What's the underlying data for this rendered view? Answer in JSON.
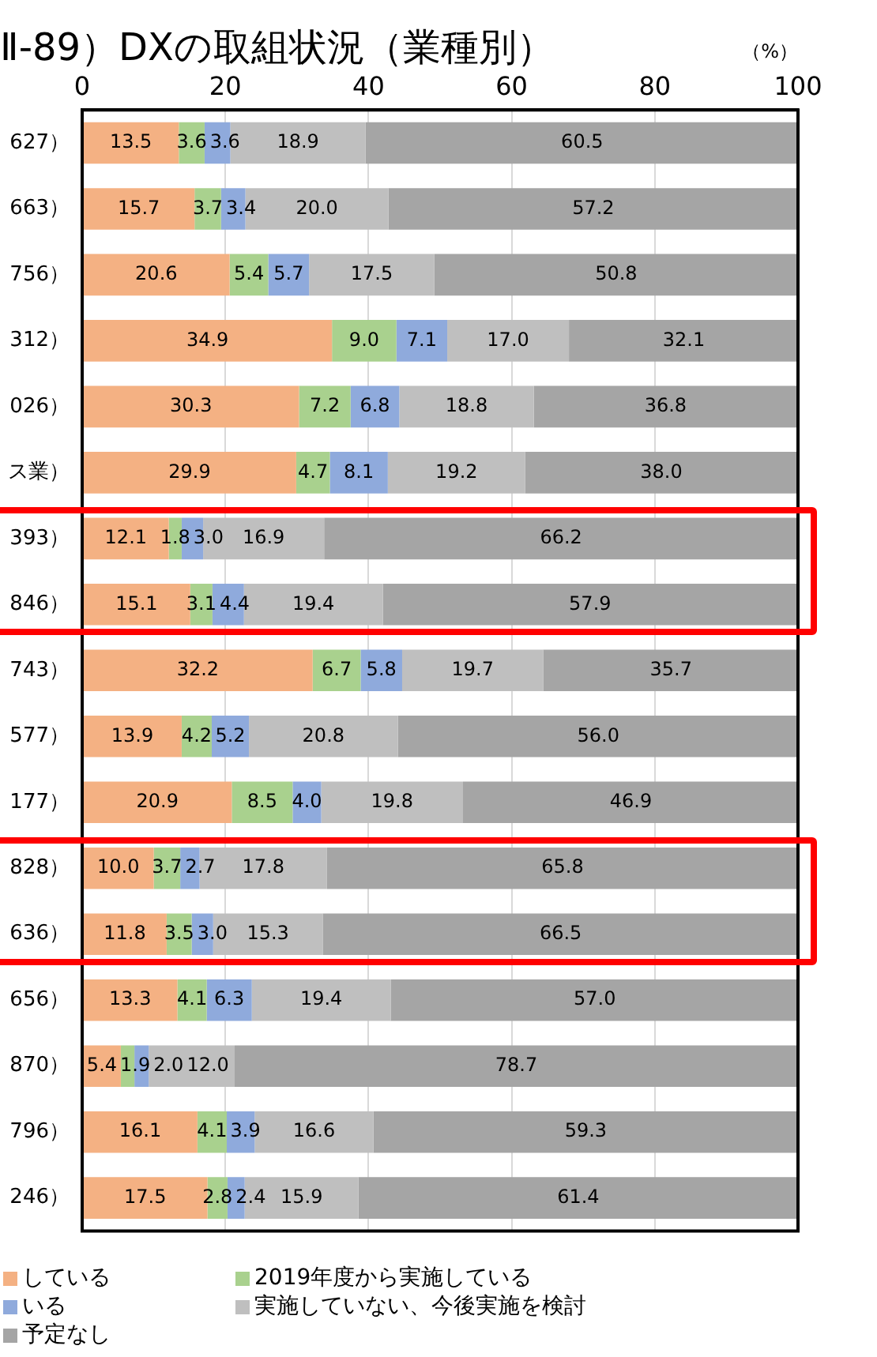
{
  "chart_data": {
    "type": "bar",
    "orientation": "horizontal",
    "stacked": true,
    "title": "Ⅱ-89）DXの取組状況（業種別）",
    "xlabel": "（%）",
    "categories": [
      "627）",
      "663）",
      "756）",
      "312）",
      "026）",
      "ス業）",
      "393）",
      "846）",
      "743）",
      "577）",
      "177）",
      "828）",
      "636）",
      "656）",
      "870）",
      "796）",
      "246）"
    ],
    "series": [
      {
        "name": "している",
        "color": "#f4b183",
        "values": [
          13.5,
          15.7,
          20.6,
          34.9,
          30.3,
          29.9,
          12.1,
          15.1,
          32.2,
          13.9,
          20.9,
          10.0,
          11.8,
          13.3,
          5.4,
          16.1,
          17.5
        ],
        "value_labels": [
          "13.5",
          "15.7",
          "20.6",
          "34.9",
          "30.3",
          "29.9",
          "12.1",
          "15.1",
          "32.2",
          "13.9",
          "20.9",
          "10.0",
          "11.8",
          "13.3",
          "5.4",
          "16.1",
          "17.5"
        ]
      },
      {
        "name": "2019年度から実施している",
        "color": "#a9d18e",
        "values": [
          3.6,
          3.7,
          5.4,
          9.0,
          7.2,
          4.7,
          1.8,
          3.1,
          6.7,
          4.2,
          8.5,
          3.7,
          3.5,
          4.1,
          1.9,
          4.1,
          2.8
        ],
        "value_labels": [
          "3.6",
          "3.7",
          "5.4",
          "9.0",
          "7.2",
          "4.7",
          "1.8",
          "3.1",
          "6.7",
          "4.2",
          "8.5",
          "3.7",
          "3.5",
          "4.1",
          "1.9",
          "4.1",
          "2.8"
        ]
      },
      {
        "name": "いる",
        "color": "#8faadc",
        "values": [
          3.6,
          3.4,
          5.7,
          7.1,
          6.8,
          8.1,
          3.0,
          4.4,
          5.8,
          5.2,
          4.0,
          2.7,
          3.0,
          6.3,
          2.0,
          3.9,
          2.4
        ],
        "value_labels": [
          "3.6",
          "3.4",
          "5.7",
          "7.1",
          "6.8",
          "8.1",
          "3.0",
          "4.4",
          "5.8",
          "5.2",
          "4.0",
          "2.7",
          "3.0",
          "6.3",
          "2.0",
          "3.9",
          "2.4"
        ]
      },
      {
        "name": "実施していない、今後実施を検討",
        "color": "#bfbfbf",
        "values": [
          18.9,
          20.0,
          17.5,
          17.0,
          18.8,
          19.2,
          16.9,
          19.4,
          19.7,
          20.8,
          19.8,
          17.8,
          15.3,
          19.4,
          12.0,
          16.6,
          15.9
        ],
        "value_labels": [
          "18.9",
          "20.0",
          "17.5",
          "17.0",
          "18.8",
          "19.2",
          "16.9",
          "19.4",
          "19.7",
          "20.8",
          "19.8",
          "17.8",
          "15.3",
          "19.4",
          "12.0",
          "16.6",
          "15.9"
        ]
      },
      {
        "name": "予定なし",
        "color": "#a5a5a5",
        "values": [
          60.5,
          57.2,
          50.8,
          32.1,
          36.8,
          38.0,
          66.2,
          57.9,
          35.7,
          56.0,
          46.9,
          65.8,
          66.5,
          57.0,
          78.7,
          59.3,
          61.4
        ],
        "value_labels": [
          "60.5",
          "57.2",
          "50.8",
          "32.1",
          "36.8",
          "38.0",
          "66.2",
          "57.9",
          "35.7",
          "56.0",
          "46.9",
          "65.8",
          "66.5",
          "57.0",
          "78.7",
          "59.3",
          "61.4"
        ]
      }
    ],
    "xlim": [
      0,
      100
    ],
    "xticks": [
      0,
      20,
      40,
      60,
      80,
      100
    ],
    "grid": "x",
    "legend": "bottom"
  }
}
